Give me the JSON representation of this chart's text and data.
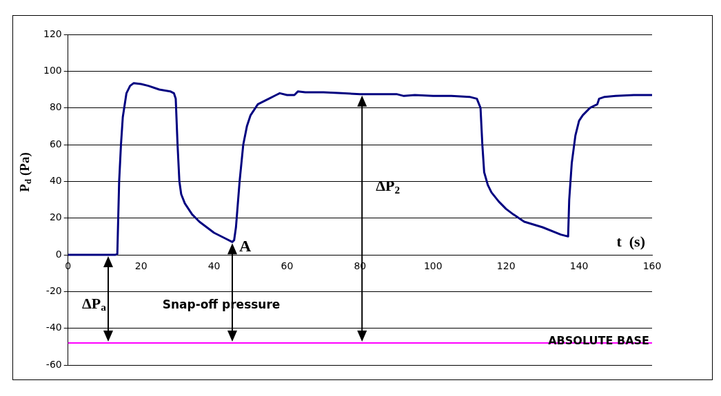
{
  "chart_data": {
    "type": "line",
    "xlabel": "t  (s)",
    "ylabel": "P$_{d}$ (Pa)",
    "x": [
      0,
      5,
      10,
      13,
      13.5,
      14,
      14.5,
      15,
      16,
      17,
      18,
      20,
      22,
      25,
      28,
      29,
      29.5,
      30,
      30.5,
      31,
      32,
      34,
      36,
      38,
      40,
      43,
      45,
      45.5,
      46,
      47,
      48,
      49,
      50,
      52,
      55,
      57,
      58,
      60,
      62,
      63,
      65,
      70,
      75,
      80,
      85,
      90,
      92,
      95,
      100,
      105,
      110,
      112,
      113,
      113.5,
      114,
      115,
      116,
      118,
      120,
      122,
      125,
      130,
      135,
      137,
      137.3,
      138,
      139,
      140,
      141,
      143,
      145,
      145.5,
      147,
      150,
      155,
      160
    ],
    "series": [
      {
        "color": "#000080",
        "values": [
          0,
          0,
          0,
          0,
          0.5,
          40,
          60,
          75,
          88,
          92,
          93.5,
          93,
          92,
          90,
          89,
          88,
          85,
          60,
          40,
          33,
          28,
          22,
          18,
          15,
          12,
          9,
          7,
          8,
          15,
          40,
          60,
          70,
          76,
          82,
          85,
          87,
          88,
          87,
          87,
          89,
          88.5,
          88.5,
          88,
          87.5,
          87.5,
          87.5,
          86.5,
          87,
          86.5,
          86.5,
          86,
          85,
          80,
          60,
          45,
          38,
          34,
          29,
          25,
          22,
          18,
          15,
          11,
          10,
          30,
          50,
          65,
          73,
          76,
          80,
          82,
          85,
          86,
          86.5,
          87,
          87
        ]
      }
    ],
    "xlim": [
      0,
      160
    ],
    "xticks": [
      0,
      20,
      40,
      60,
      80,
      100,
      120,
      140,
      160
    ],
    "ylim": [
      -60,
      120
    ],
    "yticks": [
      -60,
      -40,
      -20,
      0,
      20,
      40,
      60,
      80,
      100,
      120
    ],
    "grid": "y",
    "marker": "none",
    "line_style": "solid",
    "legend": false,
    "ref_lines": [
      {
        "axis": "y",
        "value": -48,
        "label": "ABSOLUTE BASE",
        "color": "#ff00ff"
      }
    ],
    "annotations": [
      {
        "text": "ΔP$_{a}$",
        "x": 11,
        "y": 0
      },
      "Snap-off pressure",
      {
        "text": "A",
        "x": 45,
        "y": 7
      },
      "ΔP$_{2}$"
    ]
  }
}
